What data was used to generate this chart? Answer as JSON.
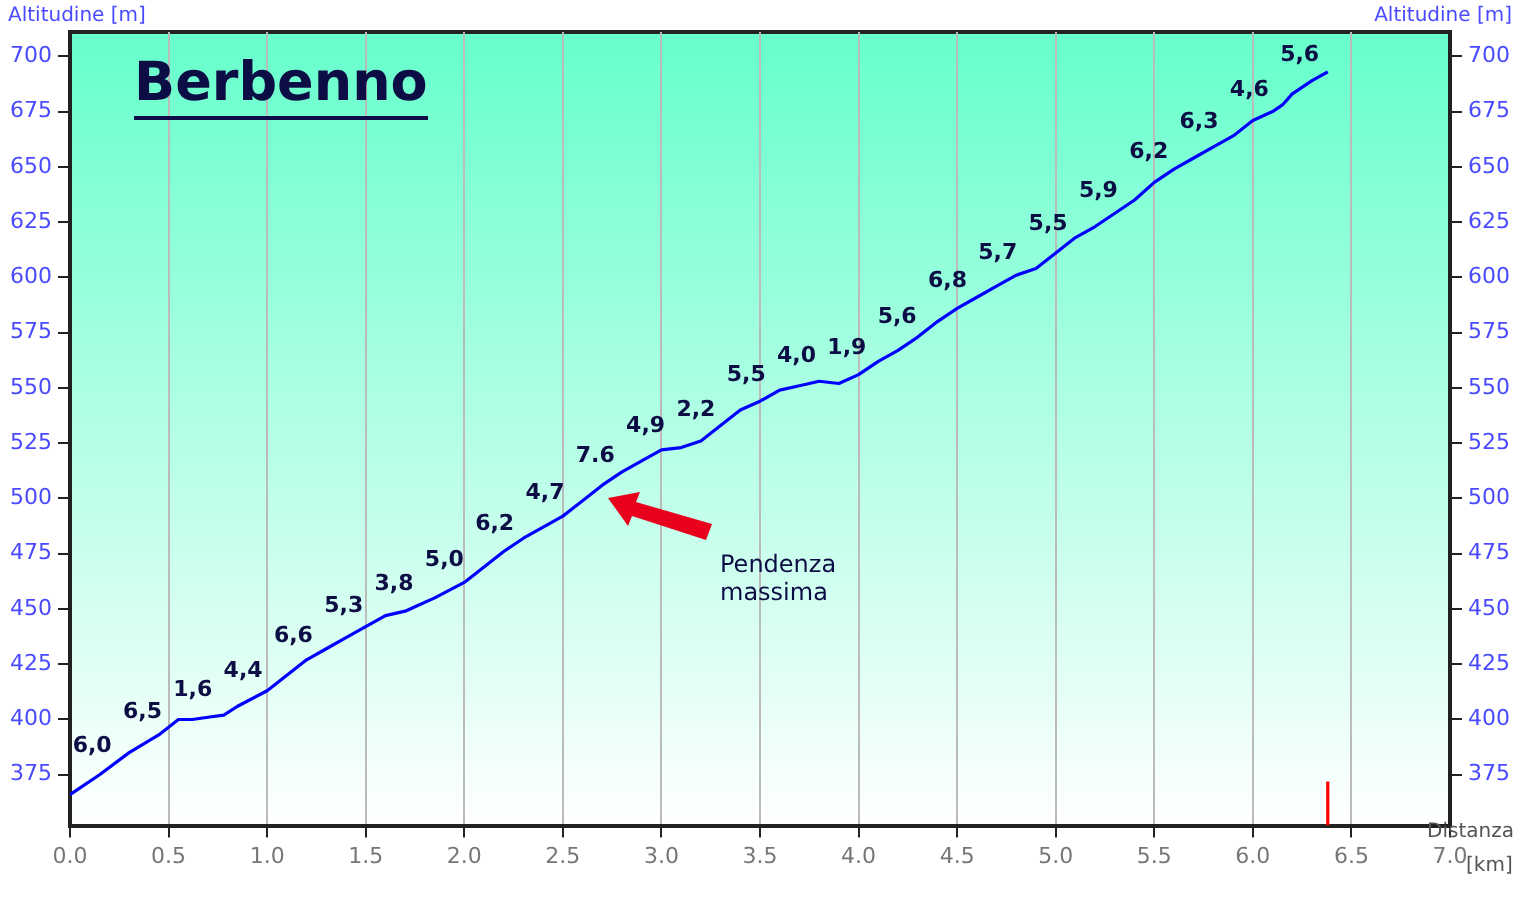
{
  "chart_data": {
    "type": "line",
    "title": "Berbenno",
    "xlabel": "Distanza [km]",
    "ylabel": "Altitudine [m]",
    "y2label": "Altitudine [m]",
    "x": [
      0,
      0.15,
      0.3,
      0.45,
      0.55,
      0.62,
      0.7,
      0.78,
      0.85,
      1.0,
      1.1,
      1.2,
      1.3,
      1.4,
      1.5,
      1.6,
      1.7,
      1.75,
      1.85,
      2.0,
      2.1,
      2.2,
      2.3,
      2.4,
      2.5,
      2.6,
      2.7,
      2.8,
      2.9,
      3.0,
      3.1,
      3.2,
      3.3,
      3.4,
      3.5,
      3.6,
      3.7,
      3.8,
      3.9,
      4.0,
      4.1,
      4.2,
      4.3,
      4.4,
      4.5,
      4.6,
      4.7,
      4.8,
      4.9,
      5.0,
      5.1,
      5.2,
      5.3,
      5.4,
      5.5,
      5.6,
      5.7,
      5.8,
      5.9,
      6.0,
      6.1,
      6.15,
      6.2,
      6.3,
      6.38
    ],
    "series": [
      {
        "x": [
          6.38,
          6.38
        ],
        "color": "#ff0000",
        "values": [
          352,
          372
        ]
      },
      {
        "color": "#0000ff",
        "values": [
          366,
          375,
          385,
          393,
          400,
          400,
          401,
          402,
          406,
          413,
          420,
          427,
          432,
          437,
          442,
          447,
          449,
          451,
          455,
          462,
          469,
          476,
          482,
          487,
          492,
          499,
          506,
          512,
          517,
          522,
          523,
          526,
          533,
          540,
          544,
          549,
          551,
          553,
          552,
          556,
          562,
          567,
          573,
          580,
          586,
          591,
          596,
          601,
          604,
          611,
          618,
          623,
          629,
          635,
          643,
          649,
          654,
          659,
          664,
          671,
          675,
          678,
          683,
          689,
          693
        ]
      }
    ],
    "xlim": [
      0,
      7
    ],
    "xticks": [
      {
        "value": 0,
        "label": "0.0"
      },
      {
        "value": 0.5,
        "label": "0.5"
      },
      {
        "value": 1,
        "label": "1.0"
      },
      {
        "value": 1.5,
        "label": "1.5"
      },
      {
        "value": 2,
        "label": "2.0"
      },
      {
        "value": 2.5,
        "label": "2.5"
      },
      {
        "value": 3,
        "label": "3.0"
      },
      {
        "value": 3.5,
        "label": "3.5"
      },
      {
        "value": 4,
        "label": "4.0"
      },
      {
        "value": 4.5,
        "label": "4.5"
      },
      {
        "value": 5,
        "label": "5.0"
      },
      {
        "value": 5.5,
        "label": "5.5"
      },
      {
        "value": 6,
        "label": "6.0"
      },
      {
        "value": 6.5,
        "label": "6.5"
      },
      {
        "value": 7,
        "label": "7.0"
      }
    ],
    "ylim": [
      352,
      711
    ],
    "yticks": [
      375,
      400,
      425,
      450,
      475,
      500,
      525,
      550,
      575,
      600,
      625,
      650,
      675,
      700
    ],
    "y2lim": [
      352,
      711
    ],
    "y2ticks": [
      375,
      400,
      425,
      450,
      475,
      500,
      525,
      550,
      575,
      600,
      625,
      650,
      675,
      700
    ],
    "grid": "x",
    "legend": false,
    "marker": "none",
    "line_style": "solid",
    "annotations": [
      "6,0",
      "6,5",
      "1,6",
      "4,4",
      "6,6",
      "5,3",
      "3,8",
      "5,0",
      "6,2",
      "4,7",
      "7.6",
      "4,9",
      "2,2",
      "5,5",
      "4,0",
      "1,9",
      "5,6",
      "6,8",
      "5,7",
      "5,5",
      "5,9",
      "6,2",
      "6,3",
      "4,6",
      "5,6",
      "Pendenza massima"
    ]
  }
}
